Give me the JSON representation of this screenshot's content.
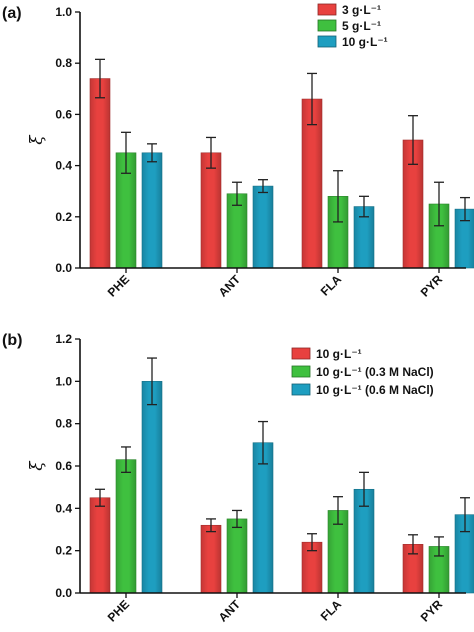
{
  "figure": {
    "panels": [
      {
        "label": "(a)",
        "ylabel": "ξ",
        "ylim": [
          0,
          1.0
        ],
        "yticks": [
          "0.0",
          "0.2",
          "0.4",
          "0.6",
          "0.8",
          "1.0"
        ],
        "categories": [
          "PHE",
          "ANT",
          "FLA",
          "PYR"
        ],
        "series": [
          {
            "name": "3 g·L⁻¹",
            "color": "#e8413f",
            "values": [
              0.74,
              0.45,
              0.66,
              0.5
            ],
            "errors": [
              0.075,
              0.06,
              0.1,
              0.095
            ]
          },
          {
            "name": "5 g·L⁻¹",
            "color": "#3fc03f",
            "values": [
              0.45,
              0.29,
              0.28,
              0.25
            ],
            "errors": [
              0.08,
              0.045,
              0.1,
              0.085
            ]
          },
          {
            "name": "10 g·L⁻¹",
            "color": "#1e9ec0",
            "values": [
              0.45,
              0.32,
              0.24,
              0.23
            ],
            "errors": [
              0.035,
              0.025,
              0.04,
              0.045
            ]
          }
        ]
      },
      {
        "label": "(b)",
        "ylabel": "ξ",
        "ylim": [
          0,
          1.2
        ],
        "yticks": [
          "0.0",
          "0.2",
          "0.4",
          "0.6",
          "0.8",
          "1.0",
          "1.2"
        ],
        "categories": [
          "PHE",
          "ANT",
          "FLA",
          "PYR"
        ],
        "series": [
          {
            "name": "10 g·L⁻¹",
            "color": "#e8413f",
            "values": [
              0.45,
              0.32,
              0.24,
              0.23
            ],
            "errors": [
              0.04,
              0.03,
              0.04,
              0.045
            ]
          },
          {
            "name": "10 g·L⁻¹ (0.3 M NaCl)",
            "color": "#3fc03f",
            "values": [
              0.63,
              0.35,
              0.39,
              0.22
            ],
            "errors": [
              0.06,
              0.04,
              0.065,
              0.045
            ]
          },
          {
            "name": "10 g·L⁻¹ (0.6 M NaCl)",
            "color": "#1e9ec0",
            "values": [
              1.0,
              0.71,
              0.49,
              0.37
            ],
            "errors": [
              0.11,
              0.1,
              0.08,
              0.08
            ]
          }
        ]
      }
    ]
  },
  "chart_data": [
    {
      "type": "bar",
      "title": "(a)",
      "ylabel": "ξ",
      "ylim": [
        0,
        1.0
      ],
      "categories": [
        "PHE",
        "ANT",
        "FLA",
        "PYR"
      ],
      "series": [
        {
          "name": "3 g·L⁻¹",
          "values": [
            0.74,
            0.45,
            0.66,
            0.5
          ]
        },
        {
          "name": "5 g·L⁻¹",
          "values": [
            0.45,
            0.29,
            0.28,
            0.25
          ]
        },
        {
          "name": "10 g·L⁻¹",
          "values": [
            0.45,
            0.32,
            0.24,
            0.23
          ]
        }
      ],
      "legend": "top-right"
    },
    {
      "type": "bar",
      "title": "(b)",
      "ylabel": "ξ",
      "ylim": [
        0,
        1.2
      ],
      "categories": [
        "PHE",
        "ANT",
        "FLA",
        "PYR"
      ],
      "series": [
        {
          "name": "10 g·L⁻¹",
          "values": [
            0.45,
            0.32,
            0.24,
            0.23
          ]
        },
        {
          "name": "10 g·L⁻¹ (0.3 M NaCl)",
          "values": [
            0.63,
            0.35,
            0.39,
            0.22
          ]
        },
        {
          "name": "10 g·L⁻¹ (0.6 M NaCl)",
          "values": [
            1.0,
            0.71,
            0.49,
            0.37
          ]
        }
      ],
      "legend": "top-right"
    }
  ]
}
